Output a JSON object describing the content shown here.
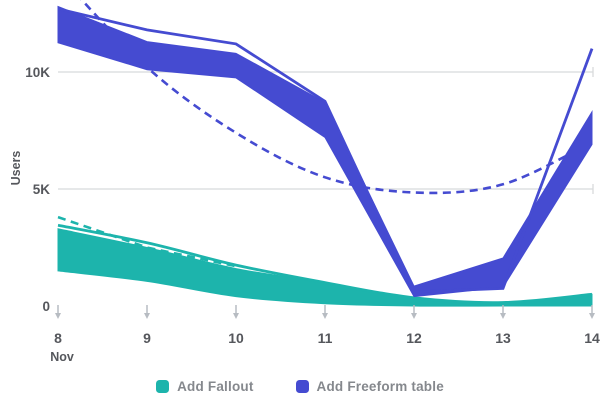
{
  "chart_data": {
    "type": "area",
    "title": "",
    "ylabel": "Users",
    "x_month": "Nov",
    "x": [
      8,
      9,
      10,
      11,
      12,
      13,
      14
    ],
    "ylim": [
      0,
      13
    ],
    "value_scale": "thousands",
    "yticks": [
      {
        "value": 0,
        "label": "0"
      },
      {
        "value": 5,
        "label": "5K"
      },
      {
        "value": 10,
        "label": "10K"
      }
    ],
    "gridline_yticks": [
      5,
      10
    ],
    "legend_position": "bottom",
    "series": [
      {
        "name": "Add Fallout",
        "color": "#1db4ac",
        "smooth_band": true,
        "smooth_trend": false,
        "band_upper_k": [
          3.3,
          2.5,
          1.6,
          1.0,
          0.35,
          0.15,
          0.5
        ],
        "band_lower_k": [
          1.5,
          1.05,
          0.4,
          0.1,
          0,
          0,
          0
        ],
        "line_k": [
          3.45,
          2.7,
          1.75,
          1.0,
          0.35,
          0.15,
          0.5
        ],
        "trend_x": [
          8,
          9,
          10
        ],
        "trend_k": [
          3.8,
          2.5,
          1.7
        ]
      },
      {
        "name": "Add Freeform table",
        "color": "#454bd1",
        "smooth_band": false,
        "smooth_trend": true,
        "band_upper_k": [
          12.8,
          11.3,
          10.8,
          8.7,
          0.85,
          2.05,
          8.3
        ],
        "band_lower_k": [
          11.25,
          10.1,
          9.75,
          7.2,
          0.4,
          0.8,
          6.9
        ],
        "line_k": [
          12.7,
          11.8,
          11.2,
          8.75,
          0.6,
          0.75,
          11.0
        ],
        "trend_x": [
          8,
          9,
          10,
          11,
          12,
          13,
          14
        ],
        "trend_k": [
          14.2,
          10.2,
          7.4,
          5.5,
          4.85,
          5.2,
          7.0
        ]
      }
    ]
  },
  "colors": {
    "grid": "#d8dadc",
    "tick_arrow": "#b7bcc2",
    "axis_text": "#55575c",
    "legend_text": "#85888d",
    "background": "#ffffff"
  }
}
